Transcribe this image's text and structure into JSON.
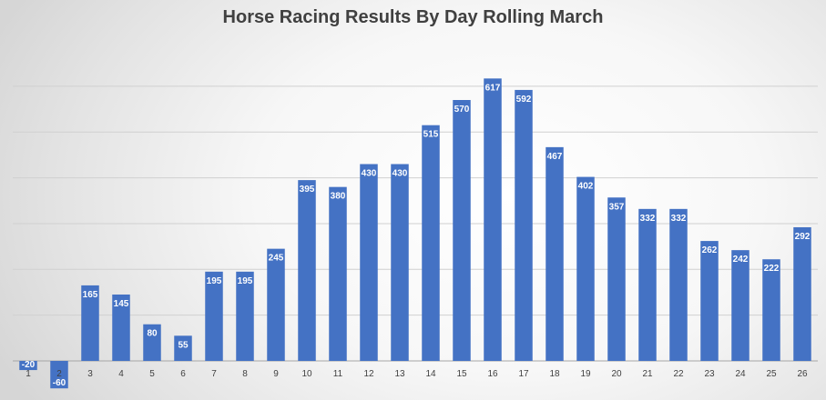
{
  "chart_data": {
    "type": "bar",
    "title": "Horse Racing Results By Day Rolling March",
    "xlabel": "",
    "ylabel": "",
    "categories": [
      "1",
      "2",
      "3",
      "4",
      "5",
      "6",
      "7",
      "8",
      "9",
      "10",
      "11",
      "12",
      "13",
      "14",
      "15",
      "16",
      "17",
      "18",
      "19",
      "20",
      "21",
      "22",
      "23",
      "24",
      "25",
      "26"
    ],
    "values": [
      -20,
      -60,
      165,
      145,
      80,
      55,
      195,
      195,
      245,
      395,
      380,
      430,
      430,
      515,
      570,
      617,
      592,
      467,
      402,
      357,
      332,
      332,
      262,
      242,
      222,
      292
    ],
    "ylim": [
      -100,
      650
    ],
    "grid": true,
    "legend": "none",
    "bar_color": "#4472c4",
    "label_color": "#ffffff"
  }
}
